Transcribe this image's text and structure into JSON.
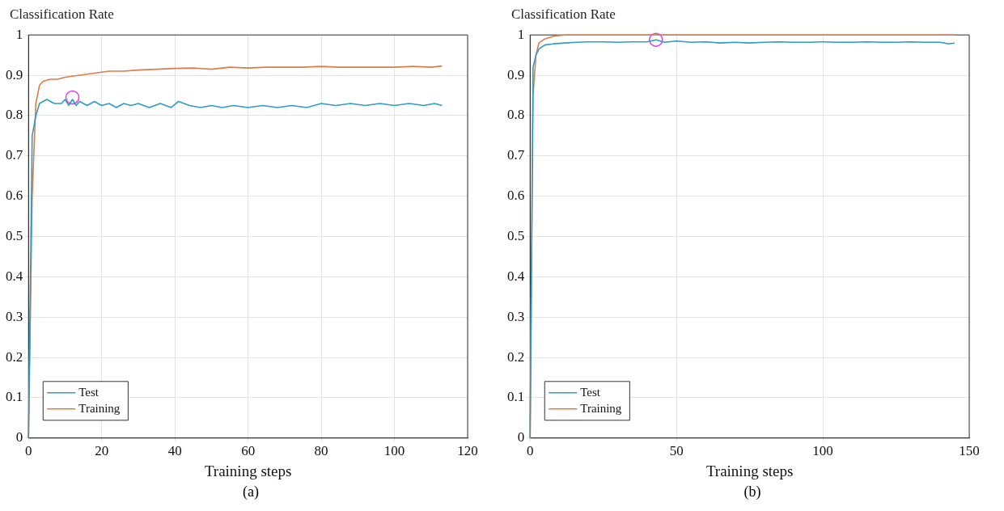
{
  "chart_data": [
    {
      "type": "line",
      "ylabel": "Classification Rate",
      "xlabel": "Training steps",
      "annotations": [
        "(a)"
      ],
      "xlim": [
        0,
        120
      ],
      "xticks": [
        0,
        20,
        40,
        60,
        80,
        100,
        120
      ],
      "ylim": [
        0,
        1
      ],
      "yticks": [
        0,
        0.1,
        0.2,
        0.3,
        0.4,
        0.5,
        0.6,
        0.7,
        0.8,
        0.9,
        1
      ],
      "grid": true,
      "legend": "bottom left",
      "marker": "none",
      "line_style": "solid",
      "series": [
        {
          "name": "Test",
          "color": "#2e9cc4",
          "x": [
            0,
            1,
            2,
            3,
            5,
            7,
            9,
            10,
            11,
            12,
            13,
            14,
            16,
            18,
            20,
            22,
            24,
            26,
            28,
            30,
            33,
            36,
            39,
            41,
            44,
            47,
            50,
            53,
            56,
            60,
            64,
            68,
            72,
            76,
            80,
            84,
            88,
            92,
            96,
            100,
            104,
            108,
            111,
            113
          ],
          "values": [
            0,
            0.75,
            0.8,
            0.83,
            0.84,
            0.83,
            0.83,
            0.84,
            0.825,
            0.84,
            0.825,
            0.835,
            0.825,
            0.835,
            0.825,
            0.83,
            0.82,
            0.83,
            0.825,
            0.83,
            0.82,
            0.83,
            0.82,
            0.835,
            0.825,
            0.82,
            0.825,
            0.82,
            0.825,
            0.82,
            0.825,
            0.82,
            0.825,
            0.82,
            0.83,
            0.825,
            0.83,
            0.825,
            0.83,
            0.825,
            0.83,
            0.825,
            0.83,
            0.825
          ]
        },
        {
          "name": "Training",
          "color": "#e07a4a",
          "x": [
            0,
            1,
            2,
            3,
            4,
            6,
            8,
            10,
            14,
            18,
            22,
            26,
            30,
            35,
            40,
            45,
            50,
            55,
            60,
            65,
            70,
            75,
            80,
            85,
            90,
            95,
            100,
            105,
            110,
            113
          ],
          "values": [
            0,
            0.6,
            0.83,
            0.875,
            0.885,
            0.89,
            0.89,
            0.895,
            0.9,
            0.905,
            0.91,
            0.91,
            0.913,
            0.915,
            0.917,
            0.918,
            0.915,
            0.92,
            0.918,
            0.92,
            0.92,
            0.92,
            0.922,
            0.92,
            0.92,
            0.92,
            0.92,
            0.922,
            0.92,
            0.923
          ]
        },
        {
          "type": "scatter",
          "marker": "circle",
          "color": "#e040e0",
          "x": [
            12
          ],
          "values": [
            0.845
          ]
        }
      ]
    },
    {
      "type": "line",
      "ylabel": "Classification Rate",
      "xlabel": "Training steps",
      "annotations": [
        "(b)"
      ],
      "xlim": [
        0,
        150
      ],
      "xticks": [
        0,
        50,
        100,
        150
      ],
      "ylim": [
        0,
        1
      ],
      "yticks": [
        0,
        0.1,
        0.2,
        0.3,
        0.4,
        0.5,
        0.6,
        0.7,
        0.8,
        0.9,
        1
      ],
      "grid": true,
      "legend": "bottom left",
      "marker": "none",
      "line_style": "solid",
      "series": [
        {
          "name": "Test",
          "color": "#2e9cc4",
          "x": [
            0,
            1,
            2,
            3,
            5,
            8,
            12,
            16,
            20,
            25,
            30,
            35,
            40,
            43,
            46,
            50,
            55,
            60,
            65,
            70,
            75,
            80,
            85,
            90,
            95,
            100,
            105,
            110,
            115,
            120,
            125,
            130,
            135,
            140,
            143,
            145
          ],
          "values": [
            0,
            0.92,
            0.95,
            0.965,
            0.975,
            0.978,
            0.98,
            0.982,
            0.983,
            0.983,
            0.982,
            0.983,
            0.983,
            0.988,
            0.982,
            0.985,
            0.982,
            0.983,
            0.98,
            0.982,
            0.98,
            0.982,
            0.983,
            0.982,
            0.982,
            0.983,
            0.982,
            0.982,
            0.983,
            0.982,
            0.982,
            0.983,
            0.982,
            0.982,
            0.978,
            0.98
          ]
        },
        {
          "name": "Training",
          "color": "#e07a4a",
          "x": [
            0,
            1,
            2,
            3,
            5,
            8,
            12,
            145
          ],
          "values": [
            0,
            0.85,
            0.95,
            0.98,
            0.99,
            0.997,
            1,
            1
          ]
        },
        {
          "type": "scatter",
          "marker": "circle",
          "color": "#e040e0",
          "x": [
            43
          ],
          "values": [
            0.988
          ]
        }
      ]
    }
  ]
}
